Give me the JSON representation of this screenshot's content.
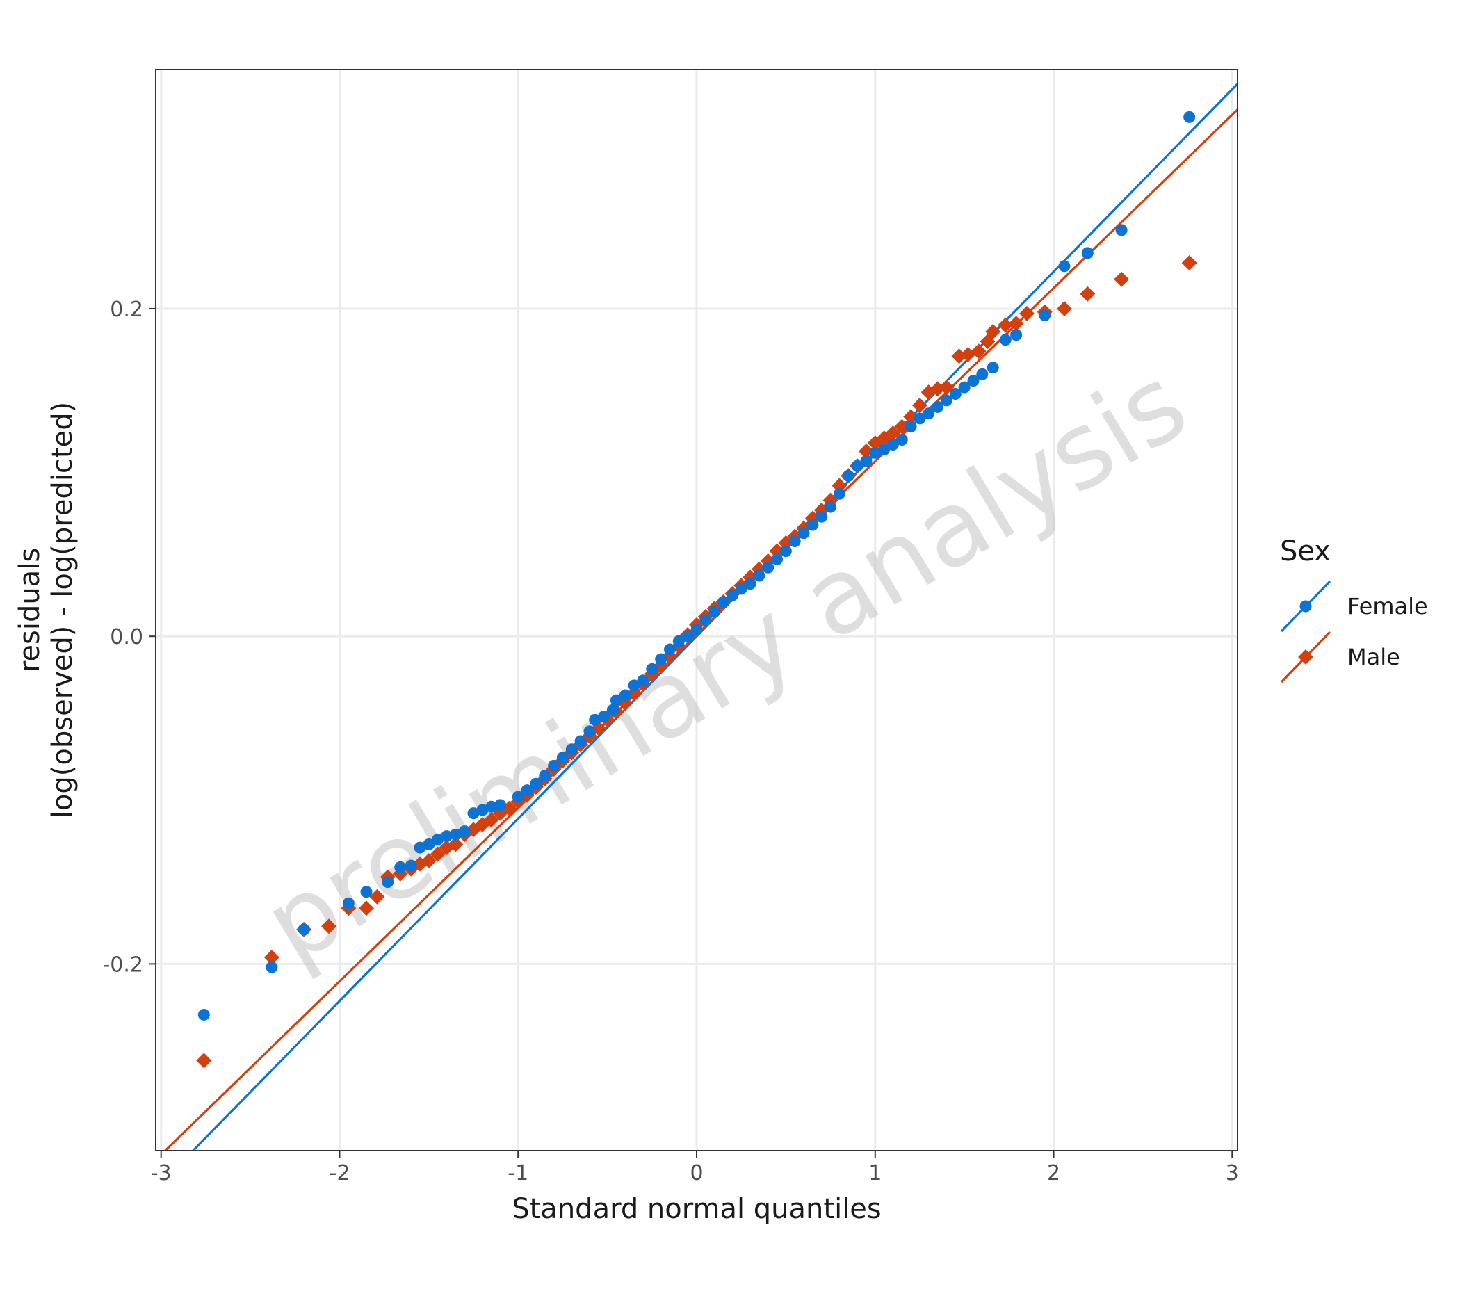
{
  "chart_data": {
    "type": "scatter",
    "subtype": "qq-plot",
    "title": "",
    "xlabel": "Standard normal quantiles",
    "ylabel_lines": [
      "residuals",
      "log(observed) - log(predicted)"
    ],
    "xlim": [
      -3.03,
      3.03
    ],
    "ylim": [
      -0.314,
      0.346
    ],
    "x_ticks": [
      -3,
      -2,
      -1,
      0,
      1,
      2,
      3
    ],
    "x_tick_labels": [
      "-3",
      "-2",
      "-1",
      "0",
      "1",
      "2",
      "3"
    ],
    "y_ticks": [
      -0.2,
      0.0,
      0.2
    ],
    "y_tick_labels": [
      "-0.2",
      "0.0",
      "0.2"
    ],
    "grid": true,
    "legend": {
      "title": "Sex",
      "position": "right"
    },
    "watermark": "preliminary analysis",
    "series": [
      {
        "name": "Female",
        "marker": "circle",
        "color": "#0B72D6",
        "reference_line": {
          "slope": 0.1113,
          "intercept": 0.0
        },
        "points": [
          [
            -2.76,
            -0.231
          ],
          [
            -2.38,
            -0.202
          ],
          [
            -2.2,
            -0.179
          ],
          [
            -1.95,
            -0.163
          ],
          [
            -1.85,
            -0.156
          ],
          [
            -1.73,
            -0.15
          ],
          [
            -1.66,
            -0.141
          ],
          [
            -1.6,
            -0.14
          ],
          [
            -1.55,
            -0.129
          ],
          [
            -1.5,
            -0.127
          ],
          [
            -1.45,
            -0.124
          ],
          [
            -1.4,
            -0.122
          ],
          [
            -1.35,
            -0.121
          ],
          [
            -1.3,
            -0.119
          ],
          [
            -1.25,
            -0.108
          ],
          [
            -1.2,
            -0.106
          ],
          [
            -1.15,
            -0.104
          ],
          [
            -1.1,
            -0.103
          ],
          [
            -1.0,
            -0.098
          ],
          [
            -0.95,
            -0.094
          ],
          [
            -0.9,
            -0.09
          ],
          [
            -0.85,
            -0.085
          ],
          [
            -0.8,
            -0.079
          ],
          [
            -0.75,
            -0.074
          ],
          [
            -0.7,
            -0.069
          ],
          [
            -0.65,
            -0.064
          ],
          [
            -0.6,
            -0.058
          ],
          [
            -0.57,
            -0.051
          ],
          [
            -0.52,
            -0.049
          ],
          [
            -0.47,
            -0.045
          ],
          [
            -0.45,
            -0.039
          ],
          [
            -0.4,
            -0.036
          ],
          [
            -0.35,
            -0.03
          ],
          [
            -0.3,
            -0.027
          ],
          [
            -0.25,
            -0.02
          ],
          [
            -0.2,
            -0.014
          ],
          [
            -0.15,
            -0.008
          ],
          [
            -0.1,
            -0.003
          ],
          [
            -0.05,
            0.0
          ],
          [
            0.0,
            0.004
          ],
          [
            0.05,
            0.01
          ],
          [
            0.1,
            0.015
          ],
          [
            0.15,
            0.021
          ],
          [
            0.2,
            0.025
          ],
          [
            0.25,
            0.029
          ],
          [
            0.3,
            0.032
          ],
          [
            0.35,
            0.037
          ],
          [
            0.4,
            0.042
          ],
          [
            0.45,
            0.047
          ],
          [
            0.5,
            0.052
          ],
          [
            0.55,
            0.058
          ],
          [
            0.6,
            0.063
          ],
          [
            0.65,
            0.068
          ],
          [
            0.7,
            0.073
          ],
          [
            0.75,
            0.079
          ],
          [
            0.8,
            0.087
          ],
          [
            0.85,
            0.098
          ],
          [
            0.9,
            0.104
          ],
          [
            0.95,
            0.107
          ],
          [
            1.0,
            0.112
          ],
          [
            1.05,
            0.114
          ],
          [
            1.1,
            0.117
          ],
          [
            1.15,
            0.12
          ],
          [
            1.2,
            0.128
          ],
          [
            1.25,
            0.133
          ],
          [
            1.3,
            0.136
          ],
          [
            1.35,
            0.14
          ],
          [
            1.4,
            0.144
          ],
          [
            1.45,
            0.148
          ],
          [
            1.5,
            0.152
          ],
          [
            1.55,
            0.156
          ],
          [
            1.6,
            0.16
          ],
          [
            1.66,
            0.164
          ],
          [
            1.73,
            0.181
          ],
          [
            1.79,
            0.184
          ],
          [
            1.95,
            0.196
          ],
          [
            2.06,
            0.226
          ],
          [
            2.19,
            0.234
          ],
          [
            2.38,
            0.248
          ],
          [
            2.76,
            0.317
          ]
        ]
      },
      {
        "name": "Male",
        "marker": "diamond",
        "color": "#D43F0E",
        "reference_line": {
          "slope": 0.1058,
          "intercept": 0.001
        },
        "points": [
          [
            -2.76,
            -0.259
          ],
          [
            -2.38,
            -0.196
          ],
          [
            -2.2,
            -0.179
          ],
          [
            -2.06,
            -0.177
          ],
          [
            -1.95,
            -0.166
          ],
          [
            -1.85,
            -0.166
          ],
          [
            -1.79,
            -0.159
          ],
          [
            -1.73,
            -0.147
          ],
          [
            -1.66,
            -0.145
          ],
          [
            -1.6,
            -0.142
          ],
          [
            -1.55,
            -0.139
          ],
          [
            -1.5,
            -0.137
          ],
          [
            -1.45,
            -0.133
          ],
          [
            -1.4,
            -0.129
          ],
          [
            -1.35,
            -0.127
          ],
          [
            -1.3,
            -0.121
          ],
          [
            -1.25,
            -0.118
          ],
          [
            -1.2,
            -0.115
          ],
          [
            -1.15,
            -0.112
          ],
          [
            -1.1,
            -0.108
          ],
          [
            -1.05,
            -0.105
          ],
          [
            -1.0,
            -0.101
          ],
          [
            -0.95,
            -0.097
          ],
          [
            -0.9,
            -0.092
          ],
          [
            -0.85,
            -0.087
          ],
          [
            -0.8,
            -0.081
          ],
          [
            -0.75,
            -0.076
          ],
          [
            -0.7,
            -0.071
          ],
          [
            -0.65,
            -0.066
          ],
          [
            -0.6,
            -0.061
          ],
          [
            -0.55,
            -0.056
          ],
          [
            -0.5,
            -0.051
          ],
          [
            -0.45,
            -0.046
          ],
          [
            -0.4,
            -0.041
          ],
          [
            -0.35,
            -0.035
          ],
          [
            -0.3,
            -0.029
          ],
          [
            -0.25,
            -0.023
          ],
          [
            -0.2,
            -0.018
          ],
          [
            -0.15,
            -0.012
          ],
          [
            -0.1,
            -0.006
          ],
          [
            -0.05,
            0.001
          ],
          [
            0.0,
            0.007
          ],
          [
            0.05,
            0.012
          ],
          [
            0.1,
            0.017
          ],
          [
            0.15,
            0.021
          ],
          [
            0.2,
            0.026
          ],
          [
            0.25,
            0.031
          ],
          [
            0.3,
            0.036
          ],
          [
            0.35,
            0.041
          ],
          [
            0.4,
            0.046
          ],
          [
            0.45,
            0.052
          ],
          [
            0.5,
            0.057
          ],
          [
            0.55,
            0.061
          ],
          [
            0.6,
            0.066
          ],
          [
            0.65,
            0.072
          ],
          [
            0.7,
            0.077
          ],
          [
            0.75,
            0.083
          ],
          [
            0.8,
            0.092
          ],
          [
            0.85,
            0.098
          ],
          [
            0.9,
            0.104
          ],
          [
            0.95,
            0.113
          ],
          [
            1.0,
            0.118
          ],
          [
            1.05,
            0.121
          ],
          [
            1.1,
            0.124
          ],
          [
            1.15,
            0.128
          ],
          [
            1.2,
            0.134
          ],
          [
            1.25,
            0.141
          ],
          [
            1.3,
            0.149
          ],
          [
            1.35,
            0.151
          ],
          [
            1.4,
            0.152
          ],
          [
            1.47,
            0.171
          ],
          [
            1.52,
            0.172
          ],
          [
            1.58,
            0.174
          ],
          [
            1.63,
            0.18
          ],
          [
            1.66,
            0.186
          ],
          [
            1.73,
            0.19
          ],
          [
            1.79,
            0.191
          ],
          [
            1.85,
            0.197
          ],
          [
            1.95,
            0.198
          ],
          [
            2.06,
            0.2
          ],
          [
            2.19,
            0.209
          ],
          [
            2.38,
            0.218
          ],
          [
            2.76,
            0.228
          ]
        ]
      }
    ]
  }
}
